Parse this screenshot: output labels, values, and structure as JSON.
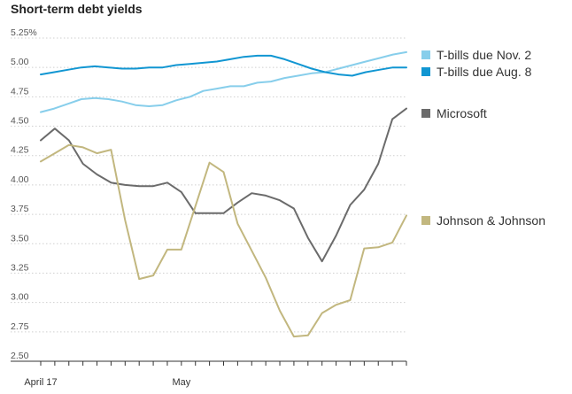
{
  "chart_data": {
    "type": "line",
    "title": "Short-term debt yields",
    "xlabel": "",
    "ylabel": "",
    "ylim": [
      2.5,
      5.25
    ],
    "yticks": [
      "5.25%",
      "5.00",
      "4.75",
      "4.50",
      "4.25",
      "4.00",
      "3.75",
      "3.50",
      "3.25",
      "3.00",
      "2.75",
      "2.50"
    ],
    "xtick_labels": [
      "April 17",
      "May"
    ],
    "grid": true,
    "legend": "right",
    "series": [
      {
        "name": "T-bills due Nov. 2",
        "color": "#87ceeb",
        "values": [
          4.62,
          4.65,
          4.69,
          4.73,
          4.74,
          4.73,
          4.71,
          4.68,
          4.67,
          4.68,
          4.72,
          4.75,
          4.8,
          4.82,
          4.84,
          4.84,
          4.87,
          4.88,
          4.91,
          4.93,
          4.95,
          4.96,
          4.99,
          5.02,
          5.05,
          5.08,
          5.11,
          5.13
        ]
      },
      {
        "name": "T-bills due Aug. 8",
        "color": "#1196d2",
        "values": [
          4.94,
          4.96,
          4.98,
          5.0,
          5.01,
          5.0,
          4.99,
          4.99,
          5.0,
          5.0,
          5.02,
          5.03,
          5.04,
          5.05,
          5.07,
          5.09,
          5.1,
          5.1,
          5.07,
          5.03,
          4.99,
          4.96,
          4.94,
          4.93,
          4.96,
          4.98,
          5.0,
          5.0
        ]
      },
      {
        "name": "Microsoft",
        "color": "#6b6b6b",
        "values": [
          4.38,
          4.48,
          4.38,
          4.18,
          4.09,
          4.02,
          4.0,
          3.99,
          3.99,
          4.02,
          3.94,
          3.76,
          3.76,
          3.76,
          3.85,
          3.93,
          3.91,
          3.87,
          3.8,
          3.55,
          3.35,
          3.57,
          3.83,
          3.96,
          4.18,
          4.56,
          4.65
        ]
      },
      {
        "name": "Johnson & Johnson",
        "color": "#c2b77f",
        "values": [
          4.2,
          4.27,
          4.34,
          4.32,
          4.27,
          4.3,
          3.7,
          3.2,
          3.23,
          3.45,
          3.45,
          3.82,
          4.19,
          4.11,
          3.67,
          3.44,
          3.21,
          2.93,
          2.71,
          2.72,
          2.91,
          2.98,
          3.02,
          3.46,
          3.47,
          3.51,
          3.74
        ]
      }
    ]
  }
}
